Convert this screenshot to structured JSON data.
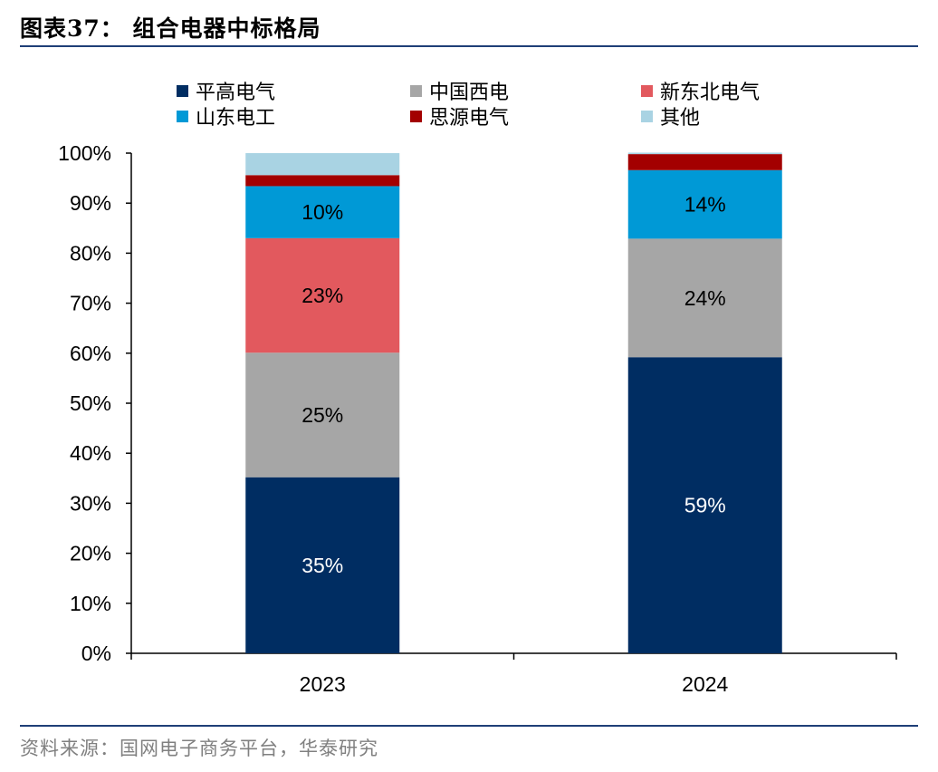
{
  "header": {
    "title": "图表37：  组合电器中标格局"
  },
  "footer": {
    "source": "资料来源：国网电子商务平台，华泰研究"
  },
  "chart_data": {
    "type": "bar",
    "stacked": true,
    "title": "",
    "xlabel": "",
    "ylabel": "",
    "categories": [
      "2023",
      "2024"
    ],
    "ylim": [
      0,
      100
    ],
    "y_ticks": [
      "0%",
      "10%",
      "20%",
      "30%",
      "40%",
      "50%",
      "60%",
      "70%",
      "80%",
      "90%",
      "100%"
    ],
    "legend_position": "top",
    "series": [
      {
        "name": "平高电气",
        "color": "#002D62",
        "values": [
          35.2,
          59.2
        ],
        "labels": [
          "35%",
          "59%"
        ],
        "label_color": "#ffffff"
      },
      {
        "name": "中国西电",
        "color": "#A6A6A6",
        "values": [
          24.9,
          23.7
        ],
        "labels": [
          "25%",
          "24%"
        ],
        "label_color": "#000000"
      },
      {
        "name": "新东北电气",
        "color": "#E2595E",
        "values": [
          22.9,
          0
        ],
        "labels": [
          "23%",
          ""
        ],
        "label_color": "#000000"
      },
      {
        "name": "山东电工",
        "color": "#0099D6",
        "values": [
          10.4,
          13.7
        ],
        "labels": [
          "10%",
          "14%"
        ],
        "label_color": "#000000"
      },
      {
        "name": "思源电气",
        "color": "#A30000",
        "values": [
          2.2,
          3.2
        ],
        "labels": [
          "",
          ""
        ],
        "label_color": "#000000"
      },
      {
        "name": "其他",
        "color": "#A9D3E3",
        "values": [
          4.4,
          0.3
        ],
        "labels": [
          "",
          ""
        ],
        "label_color": "#000000"
      }
    ]
  }
}
